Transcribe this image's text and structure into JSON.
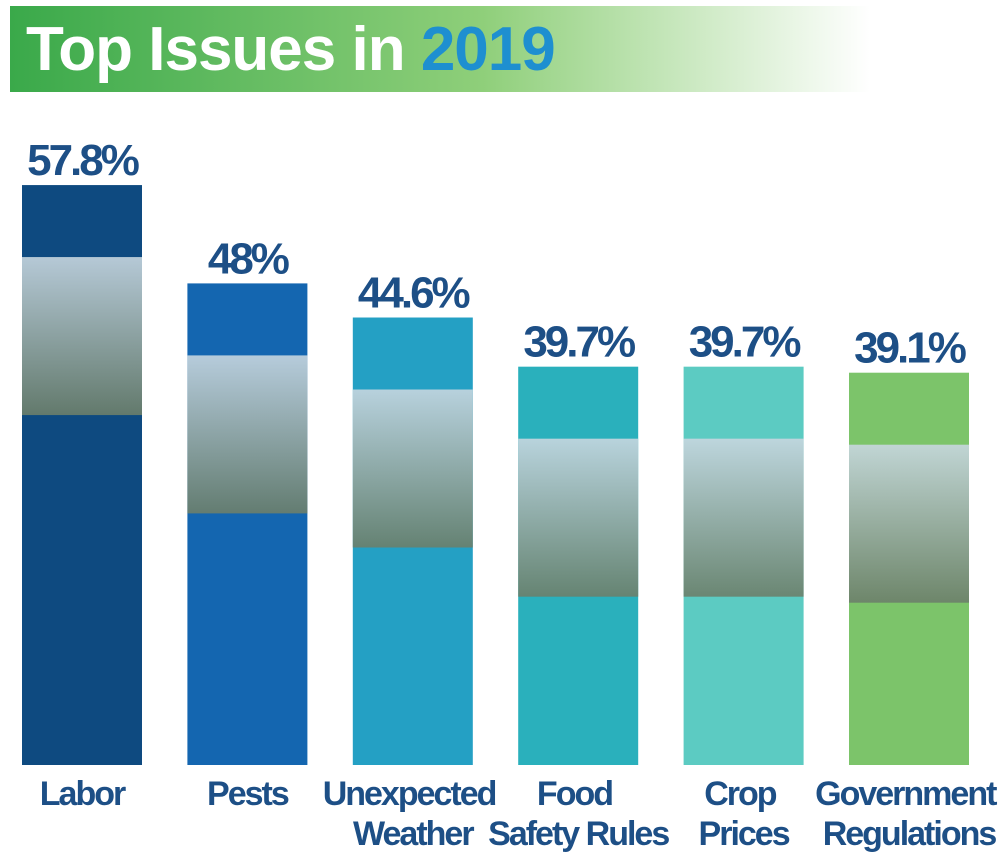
{
  "chart_data": {
    "type": "bar",
    "title": "Top Issues in 2019",
    "categories": [
      "Labor",
      "Pests",
      "Unexpected Weather",
      "Food Safety Rules",
      "Crop Prices",
      "Government Regulations"
    ],
    "values": [
      57.8,
      48,
      44.6,
      39.7,
      39.7,
      39.1
    ],
    "value_labels": [
      "57.8%",
      "48%",
      "44.6%",
      "39.7%",
      "39.7%",
      "39.1%"
    ],
    "colors": [
      "#0e4a80",
      "#1466b0",
      "#24a0c4",
      "#2ab0bc",
      "#5ccbc2",
      "#7cc46a"
    ],
    "ylim": [
      0,
      60
    ]
  }
}
